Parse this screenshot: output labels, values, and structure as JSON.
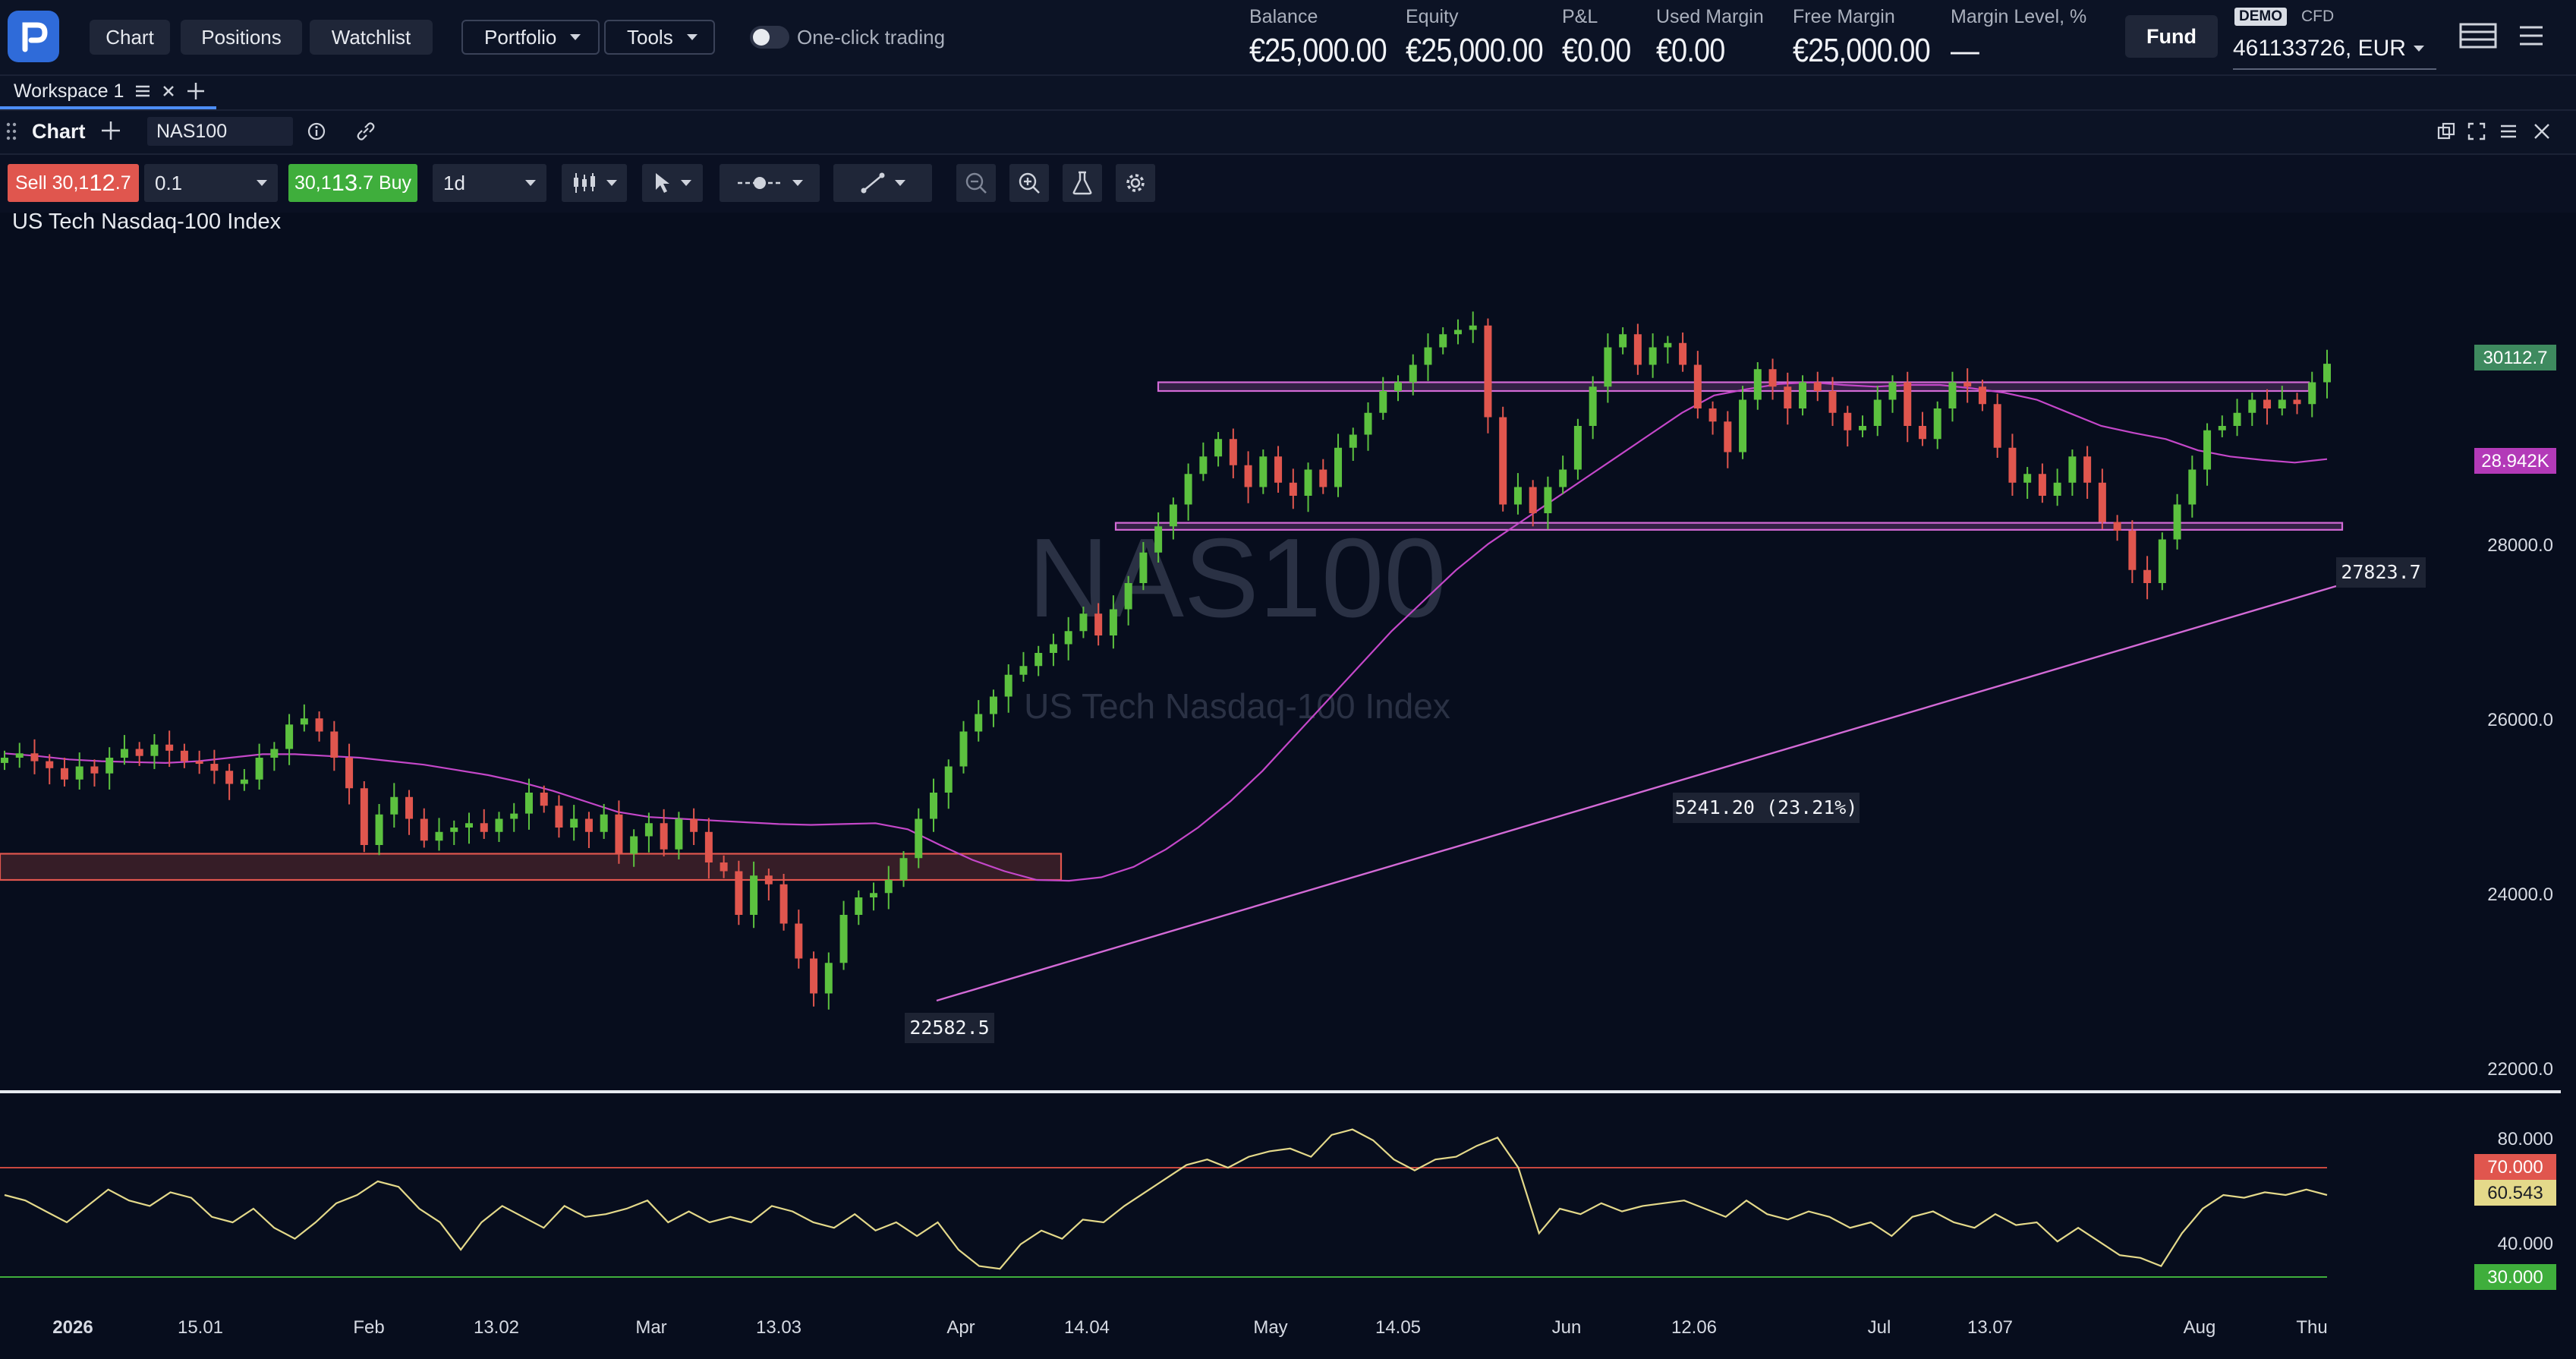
{
  "topbar": {
    "nav": [
      "Chart",
      "Positions",
      "Watchlist"
    ],
    "dropdowns": [
      "Portfolio",
      "Tools"
    ],
    "one_click_label": "One-click trading",
    "stats": [
      {
        "label": "Balance",
        "value": "€25,000.00"
      },
      {
        "label": "Equity",
        "value": "€25,000.00"
      },
      {
        "label": "P&L",
        "value": "€0.00"
      },
      {
        "label": "Used Margin",
        "value": "€0.00"
      },
      {
        "label": "Free Margin",
        "value": "€25,000.00"
      },
      {
        "label": "Margin Level, %",
        "value": "—"
      }
    ],
    "fund_label": "Fund",
    "demo_badge": "DEMO",
    "cfd_label": "CFD",
    "account": "461133726, EUR"
  },
  "workspace": {
    "tab_label": "Workspace 1"
  },
  "chart_header": {
    "title": "Chart",
    "symbol": "NAS100"
  },
  "toolbar": {
    "sell_label": "Sell",
    "sell_price_main": "30,1",
    "sell_price_big": "12",
    "sell_price_tail": ".7",
    "quantity": "0.1",
    "buy_price_main": "30,1",
    "buy_price_big": "13",
    "buy_price_tail": ".7",
    "buy_label": "Buy",
    "timeframe": "1d"
  },
  "instrument_name": "US Tech Nasdaq-100 Index",
  "watermark": {
    "symbol": "NAS100",
    "name": "US Tech Nasdaq-100 Index"
  },
  "chart_data": {
    "type": "candlestick",
    "symbol": "NAS100",
    "timeframe": "1d",
    "price_axis_ticks": [
      "28000.0",
      "26000.0",
      "24000.0",
      "22000.0"
    ],
    "price_axis_range": [
      22000,
      30300
    ],
    "time_axis_labels": [
      "2026",
      "15.01",
      "Feb",
      "13.02",
      "Mar",
      "13.03",
      "Apr",
      "14.04",
      "May",
      "14.05",
      "Jun",
      "12.06",
      "Jul",
      "13.07",
      "Aug",
      "Thu"
    ],
    "last_price": "30112.7",
    "ma_value": "28.942K",
    "trendline_end_label": "27823.7",
    "trendline_start_label": "22582.5",
    "measure_label": "5241.20 (23.21%)",
    "zones": [
      {
        "color": "#e0564e",
        "low": 24200,
        "high": 24500
      },
      {
        "color": "#d36ad6",
        "low": 28210,
        "high": 28290
      },
      {
        "color": "#d36ad6",
        "low": 29800,
        "high": 29900
      }
    ],
    "ohlc_closes": [
      25600,
      25650,
      25560,
      25480,
      25350,
      25500,
      25420,
      25600,
      25700,
      25620,
      25750,
      25680,
      25560,
      25530,
      25450,
      25300,
      25350,
      25600,
      25700,
      25980,
      26050,
      25900,
      25600,
      25250,
      24600,
      24950,
      25150,
      24900,
      24650,
      24750,
      24800,
      24850,
      24750,
      24900,
      24960,
      25200,
      25050,
      24800,
      24900,
      24750,
      24950,
      24500,
      24700,
      24850,
      24550,
      24900,
      24750,
      24400,
      24300,
      23800,
      24250,
      24150,
      23700,
      23300,
      22900,
      23250,
      23800,
      24000,
      24050,
      24200,
      24450,
      24900,
      25200,
      25500,
      25900,
      26100,
      26300,
      26550,
      26650,
      26800,
      26900,
      27050,
      27250,
      27000,
      27300,
      27600,
      27950,
      28250,
      28500,
      28850,
      29050,
      29250,
      28950,
      28700,
      29050,
      28750,
      28600,
      28900,
      28700,
      29150,
      29300,
      29550,
      29800,
      29900,
      30100,
      30300,
      30450,
      30500,
      30550,
      29500,
      28500,
      28700,
      28400,
      28700,
      28900,
      29400,
      29850,
      30300,
      30450,
      30100,
      30300,
      30350,
      30100,
      29600,
      29450,
      29100,
      29700,
      30050,
      29850,
      29600,
      29900,
      29800,
      29550,
      29350,
      29400,
      29700,
      29900,
      29400,
      29250,
      29600,
      29900,
      29850,
      29650,
      29150,
      28750,
      28850,
      28600,
      28750,
      29050,
      28750,
      28300,
      28200,
      27750,
      27600,
      28100,
      28500,
      28900,
      29350,
      29400,
      29550,
      29700,
      29600,
      29700,
      29650,
      29900,
      30112
    ],
    "ma_values": [
      25650,
      25620,
      25580,
      25560,
      25550,
      25540,
      25560,
      25600,
      25640,
      25640,
      25620,
      25600,
      25560,
      25520,
      25460,
      25400,
      25320,
      25220,
      25100,
      24980,
      24920,
      24900,
      24880,
      24860,
      24840,
      24830,
      24840,
      24850,
      24780,
      24600,
      24430,
      24300,
      24200,
      24190,
      24230,
      24350,
      24550,
      24800,
      25100,
      25450,
      25850,
      26250,
      26650,
      27050,
      27400,
      27750,
      28050,
      28300,
      28550,
      28800,
      29050,
      29300,
      29550,
      29750,
      29820,
      29880,
      29900,
      29870,
      29850,
      29870,
      29870,
      29830,
      29780,
      29700,
      29550,
      29400,
      29320,
      29250,
      29120,
      29050,
      29010,
      28980,
      29020
    ],
    "rsi_levels": {
      "upper": "70.000",
      "lower": "30.000",
      "tick": "80.000",
      "tick2": "40.000",
      "current": "60.543"
    },
    "rsi_values": [
      60,
      58,
      54,
      50,
      56,
      62,
      58,
      56,
      61,
      59,
      52,
      50,
      55,
      48,
      44,
      50,
      57,
      60,
      65,
      63,
      55,
      50,
      40,
      50,
      56,
      52,
      48,
      56,
      52,
      53,
      55,
      58,
      50,
      54,
      50,
      52,
      50,
      56,
      54,
      50,
      48,
      53,
      47,
      50,
      45,
      50,
      40,
      34,
      33,
      42,
      47,
      44,
      51,
      50,
      56,
      61,
      66,
      71,
      73,
      70,
      74,
      76,
      77,
      74,
      82,
      84,
      80,
      73,
      69,
      73,
      74,
      78,
      81,
      70,
      46,
      55,
      53,
      57,
      54,
      56,
      57,
      58,
      55,
      52,
      58,
      53,
      51,
      54,
      52,
      48,
      50,
      45,
      52,
      54,
      50,
      48,
      53,
      49,
      50,
      43,
      48,
      43,
      38,
      37,
      34,
      46,
      55,
      60,
      59,
      61,
      60,
      62,
      60
    ]
  }
}
